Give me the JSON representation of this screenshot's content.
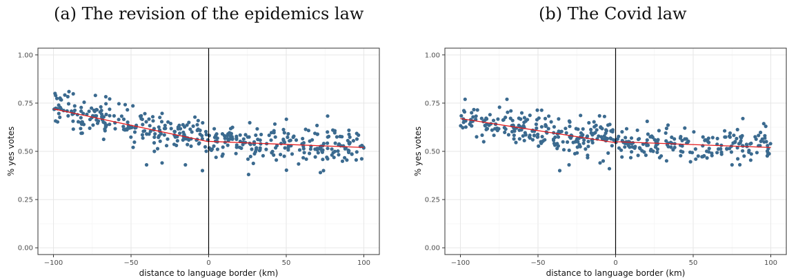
{
  "chart_data": [
    {
      "type": "scatter",
      "panel_title": "(a) The revision of the epidemics law",
      "xlabel": "distance to language border (km)",
      "ylabel": "% yes votes",
      "xlim": [
        -110,
        110
      ],
      "ylim": [
        -0.035,
        1.035
      ],
      "xticks": [
        -100,
        -50,
        0,
        50,
        100
      ],
      "xtick_labels": [
        "−100",
        "−50",
        "0",
        "50",
        "100"
      ],
      "yticks": [
        0,
        0.25,
        0.5,
        0.75,
        1
      ],
      "ytick_labels": [
        "0.00",
        "0.25",
        "0.50",
        "0.75",
        "1.00"
      ],
      "cutoff": 0,
      "fit_left": {
        "x": [
          -100,
          0
        ],
        "y": [
          0.72,
          0.55
        ]
      },
      "fit_right": {
        "x": [
          0,
          100
        ],
        "y": [
          0.552,
          0.52
        ]
      },
      "grid": true,
      "outliers": [
        [
          -40,
          0.43
        ],
        [
          -35,
          0.5
        ],
        [
          -30,
          0.44
        ],
        [
          -15,
          0.43
        ],
        [
          -4,
          0.4
        ],
        [
          72,
          0.39
        ],
        [
          74,
          0.4
        ],
        [
          -90,
          0.81
        ],
        [
          -73,
          0.79
        ]
      ],
      "point_color": "#3b6a8f",
      "fit_color": "#e41a1c"
    },
    {
      "type": "scatter",
      "panel_title": "(b) The Covid law",
      "xlabel": "distance to language border (km)",
      "ylabel": "% yes votes",
      "xlim": [
        -110,
        110
      ],
      "ylim": [
        -0.035,
        1.035
      ],
      "xticks": [
        -100,
        -50,
        0,
        50,
        100
      ],
      "xtick_labels": [
        "−100",
        "−50",
        "0",
        "50",
        "100"
      ],
      "yticks": [
        0,
        0.25,
        0.5,
        0.75,
        1
      ],
      "ytick_labels": [
        "0.00",
        "0.25",
        "0.50",
        "0.75",
        "1.00"
      ],
      "cutoff": 0,
      "fit_left": {
        "x": [
          -100,
          0
        ],
        "y": [
          0.67,
          0.545
        ]
      },
      "fit_right": {
        "x": [
          0,
          100
        ],
        "y": [
          0.55,
          0.52
        ]
      },
      "grid": true,
      "outliers": [
        [
          -36,
          0.4
        ],
        [
          -30,
          0.43
        ],
        [
          -10,
          0.44
        ],
        [
          -8,
          0.45
        ],
        [
          -4,
          0.41
        ],
        [
          -85,
          0.55
        ],
        [
          75,
          0.43
        ],
        [
          82,
          0.67
        ],
        [
          -97,
          0.77
        ],
        [
          -70,
          0.77
        ]
      ],
      "point_color": "#3b6a8f",
      "fit_color": "#e41a1c"
    }
  ]
}
